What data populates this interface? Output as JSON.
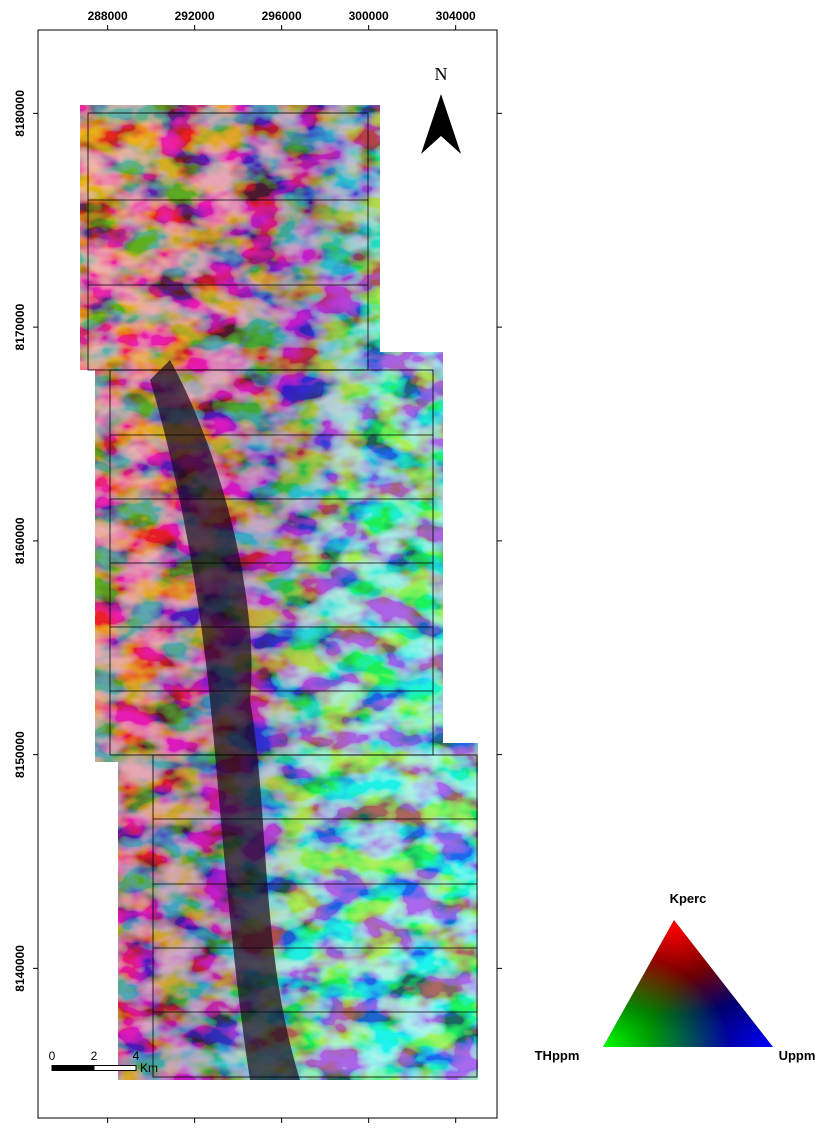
{
  "map": {
    "xlim": [
      284800,
      305900
    ],
    "ylim": [
      8133000,
      8183900
    ],
    "xticks": [
      288000,
      292000,
      296000,
      300000,
      304000
    ],
    "yticks": [
      8140000,
      8150000,
      8160000,
      8170000,
      8180000
    ],
    "north": "N",
    "scale_bar": {
      "ticks": [
        0,
        2,
        4
      ],
      "unit": "Km"
    },
    "legend": {
      "top": "Kperc",
      "left": "THppm",
      "right": "Uppm"
    }
  }
}
